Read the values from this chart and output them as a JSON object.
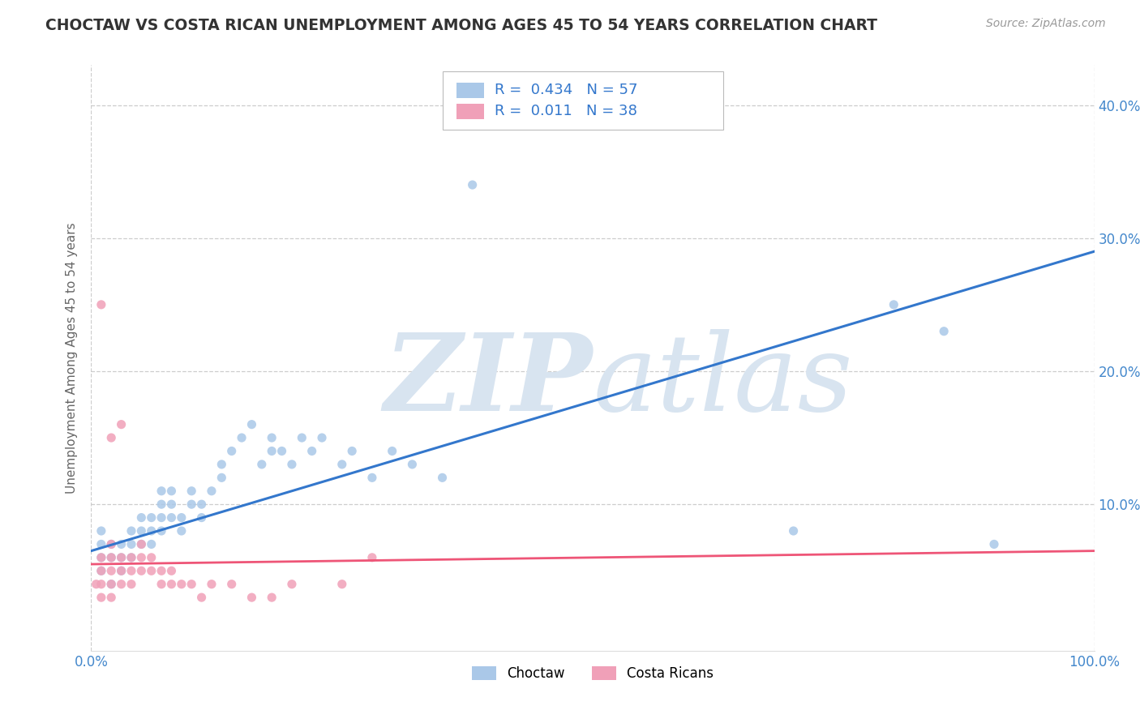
{
  "title": "CHOCTAW VS COSTA RICAN UNEMPLOYMENT AMONG AGES 45 TO 54 YEARS CORRELATION CHART",
  "source": "Source: ZipAtlas.com",
  "ylabel": "Unemployment Among Ages 45 to 54 years",
  "xlim": [
    0,
    100
  ],
  "ylim": [
    -1,
    43
  ],
  "ytick_labels": [
    "10.0%",
    "20.0%",
    "30.0%",
    "40.0%"
  ],
  "ytick_positions": [
    10,
    20,
    30,
    40
  ],
  "choctaw_color": "#aac8e8",
  "costa_rican_color": "#f0a0b8",
  "choctaw_line_color": "#3377cc",
  "costa_rican_line_color": "#ee5577",
  "choctaw_R": 0.434,
  "choctaw_N": 57,
  "costa_rican_R": 0.011,
  "costa_rican_N": 38,
  "watermark_zip": "ZIP",
  "watermark_atlas": "atlas",
  "watermark_color": "#d8e4f0",
  "background_color": "#ffffff",
  "grid_color": "#c8c8c8",
  "title_color": "#333333",
  "axis_label_color": "#4488cc",
  "choctaw_x": [
    1,
    1,
    1,
    1,
    2,
    2,
    2,
    3,
    3,
    3,
    4,
    4,
    4,
    5,
    5,
    5,
    6,
    6,
    6,
    7,
    7,
    7,
    7,
    8,
    8,
    8,
    9,
    9,
    10,
    10,
    11,
    11,
    12,
    13,
    13,
    14,
    15,
    16,
    17,
    18,
    18,
    19,
    20,
    21,
    22,
    23,
    25,
    26,
    28,
    30,
    32,
    35,
    38,
    70,
    80,
    85,
    90
  ],
  "choctaw_y": [
    5,
    6,
    7,
    8,
    4,
    6,
    7,
    5,
    6,
    7,
    6,
    7,
    8,
    7,
    8,
    9,
    7,
    8,
    9,
    8,
    9,
    10,
    11,
    9,
    10,
    11,
    8,
    9,
    10,
    11,
    9,
    10,
    11,
    12,
    13,
    14,
    15,
    16,
    13,
    14,
    15,
    14,
    13,
    15,
    14,
    15,
    13,
    14,
    12,
    14,
    13,
    12,
    34,
    8,
    25,
    23,
    7
  ],
  "costa_rican_x": [
    0.5,
    1,
    1,
    1,
    1,
    1,
    2,
    2,
    2,
    2,
    2,
    2,
    3,
    3,
    3,
    3,
    4,
    4,
    4,
    5,
    5,
    5,
    6,
    6,
    7,
    7,
    8,
    8,
    9,
    10,
    11,
    12,
    14,
    16,
    18,
    20,
    25,
    28
  ],
  "costa_rican_y": [
    4,
    3,
    4,
    5,
    6,
    25,
    3,
    4,
    5,
    6,
    7,
    15,
    4,
    5,
    6,
    16,
    4,
    5,
    6,
    5,
    6,
    7,
    5,
    6,
    4,
    5,
    4,
    5,
    4,
    4,
    3,
    4,
    4,
    3,
    3,
    4,
    4,
    6
  ],
  "choctaw_line_x0": 0,
  "choctaw_line_y0": 6.5,
  "choctaw_line_x1": 100,
  "choctaw_line_y1": 29.0,
  "costa_line_x0": 0,
  "costa_line_y0": 5.5,
  "costa_line_x1": 100,
  "costa_line_y1": 6.5
}
